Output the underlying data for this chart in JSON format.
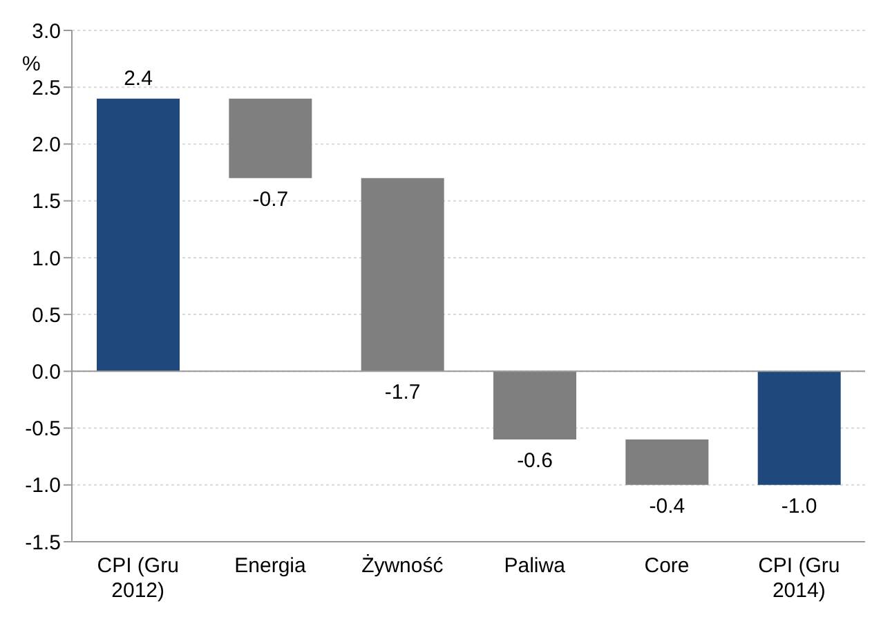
{
  "chart_data": {
    "type": "bar",
    "ylabel": "%",
    "categories": [
      "CPI (Gru 2012)",
      "Energia",
      "Żywność",
      "Paliwa",
      "Core",
      "CPI (Gru 2014)"
    ],
    "values": [
      2.4,
      -0.7,
      -1.7,
      -0.6,
      -0.4,
      -1.0
    ],
    "base": [
      0,
      2.4,
      1.7,
      0,
      -0.6,
      0
    ],
    "colors": [
      "#1f497d",
      "#7f7f7f",
      "#7f7f7f",
      "#7f7f7f",
      "#7f7f7f",
      "#1f497d"
    ],
    "value_labels": [
      "2.4",
      "-0.7",
      "-1.7",
      "-0.6",
      "-0.4",
      "-1.0"
    ],
    "ylim": [
      -1.5,
      3.0
    ],
    "yticks": [
      {
        "value": -1.5,
        "label": "-1.5"
      },
      {
        "value": -1,
        "label": "-1.0"
      },
      {
        "value": -0.5,
        "label": "-0.5"
      },
      {
        "value": 0,
        "label": "0.0"
      },
      {
        "value": 0.5,
        "label": "0.5"
      },
      {
        "value": 1,
        "label": "1.0"
      },
      {
        "value": 1.5,
        "label": "1.5"
      },
      {
        "value": 2,
        "label": "2.0"
      },
      {
        "value": 2.5,
        "label": "2.5"
      },
      {
        "value": 3,
        "label": "3.0"
      }
    ],
    "grid": "y"
  }
}
